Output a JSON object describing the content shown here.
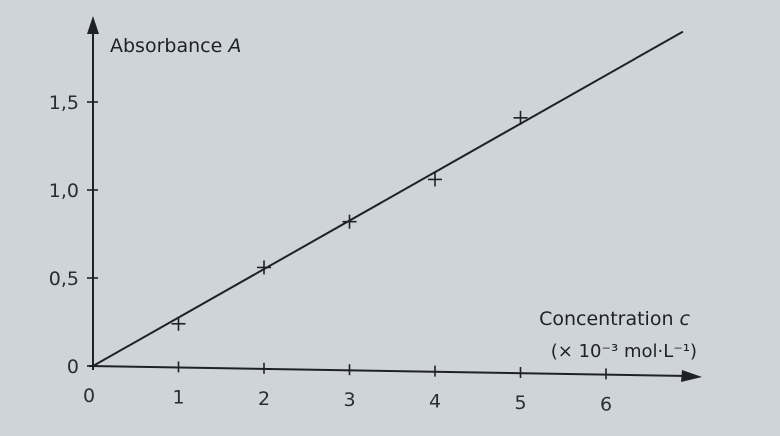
{
  "chart_data": {
    "type": "scatter",
    "title": "",
    "ylabel": {
      "text": "Absorbance ",
      "symbol": "A"
    },
    "xlabel": {
      "text": "Concentration ",
      "symbol": "c",
      "unit": "(× 10⁻³ mol·L⁻¹)"
    },
    "xlim": [
      0,
      6.9
    ],
    "ylim": [
      0,
      1.95
    ],
    "x_ticks": [
      {
        "value": 0,
        "label": "0"
      },
      {
        "value": 1,
        "label": "1"
      },
      {
        "value": 2,
        "label": "2"
      },
      {
        "value": 3,
        "label": "3"
      },
      {
        "value": 4,
        "label": "4"
      },
      {
        "value": 5,
        "label": "5"
      },
      {
        "value": 6,
        "label": "6"
      }
    ],
    "y_ticks": [
      {
        "value": 0,
        "label": "0"
      },
      {
        "value": 0.5,
        "label": "0,5"
      },
      {
        "value": 1.0,
        "label": "1,0"
      },
      {
        "value": 1.5,
        "label": "1,5"
      }
    ],
    "points": [
      {
        "x": 1,
        "y": 0.24
      },
      {
        "x": 2,
        "y": 0.56
      },
      {
        "x": 3,
        "y": 0.82
      },
      {
        "x": 4,
        "y": 1.06
      },
      {
        "x": 5,
        "y": 1.41
      }
    ],
    "fit_line": {
      "x0": 0,
      "y0": 0,
      "x1": 6.9,
      "y1": 1.9
    },
    "marker": "plus",
    "grid": false,
    "colors": {
      "ink": "#1f2126",
      "background": "#cfd3da"
    }
  }
}
